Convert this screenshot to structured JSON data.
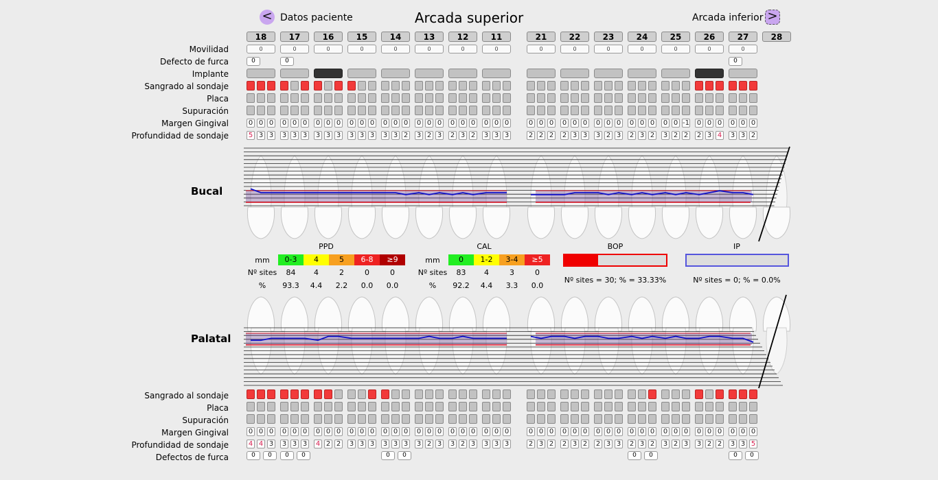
{
  "nav": {
    "left_label": "Datos paciente",
    "left_glyph": "<",
    "title": "Arcada superior",
    "right_label": "Arcada inferior",
    "right_glyph": ">"
  },
  "teeth": [
    "18",
    "17",
    "16",
    "15",
    "14",
    "13",
    "12",
    "11",
    "21",
    "22",
    "23",
    "24",
    "25",
    "26",
    "27",
    "28"
  ],
  "labels": {
    "movilidad": "Movilidad",
    "defecto_furca": "Defecto de furca",
    "implante": "Implante",
    "sangrado": "Sangrado al sondaje",
    "placa": "Placa",
    "supuracion": "Supuración",
    "margen": "Margen Gingival",
    "profundidad": "Profundidad de sondaje",
    "defectos_furca": "Defectos de furca",
    "bucal": "Bucal",
    "palatal": "Palatal"
  },
  "buccal": {
    "movilidad": [
      "0",
      "0",
      "0",
      "0",
      "0",
      "0",
      "0",
      "0",
      "0",
      "0",
      "0",
      "0",
      "0",
      "0",
      "0",
      null
    ],
    "furca": [
      "0",
      "0",
      null,
      null,
      null,
      null,
      null,
      null,
      null,
      null,
      null,
      null,
      null,
      null,
      "0",
      null
    ],
    "implante": [
      false,
      false,
      true,
      false,
      false,
      false,
      false,
      false,
      false,
      false,
      false,
      false,
      false,
      true,
      false,
      null
    ],
    "sangrado": [
      [
        1,
        1,
        1
      ],
      [
        1,
        0,
        1
      ],
      [
        1,
        0,
        1
      ],
      [
        1,
        0,
        0
      ],
      [
        0,
        0,
        0
      ],
      [
        0,
        0,
        0
      ],
      [
        0,
        0,
        0
      ],
      [
        0,
        0,
        0
      ],
      [
        0,
        0,
        0
      ],
      [
        0,
        0,
        0
      ],
      [
        0,
        0,
        0
      ],
      [
        0,
        0,
        0
      ],
      [
        0,
        0,
        0
      ],
      [
        1,
        1,
        1
      ],
      [
        1,
        1,
        1
      ],
      null
    ],
    "margen": [
      [
        "0",
        "0",
        "0"
      ],
      [
        "0",
        "0",
        "0"
      ],
      [
        "0",
        "0",
        "0"
      ],
      [
        "0",
        "0",
        "0"
      ],
      [
        "0",
        "0",
        "0"
      ],
      [
        "0",
        "0",
        "0"
      ],
      [
        "0",
        "0",
        "0"
      ],
      [
        "0",
        "0",
        "0"
      ],
      [
        "0",
        "0",
        "0"
      ],
      [
        "0",
        "0",
        "0"
      ],
      [
        "0",
        "0",
        "0"
      ],
      [
        "0",
        "0",
        "0"
      ],
      [
        "0",
        "0",
        "-1"
      ],
      [
        "0",
        "0",
        "0"
      ],
      [
        "0",
        "0",
        "0"
      ],
      null
    ],
    "profundidad": [
      [
        "5",
        "3",
        "3"
      ],
      [
        "3",
        "3",
        "3"
      ],
      [
        "3",
        "3",
        "3"
      ],
      [
        "3",
        "3",
        "3"
      ],
      [
        "3",
        "3",
        "2"
      ],
      [
        "3",
        "2",
        "3"
      ],
      [
        "2",
        "3",
        "2"
      ],
      [
        "3",
        "3",
        "3"
      ],
      [
        "2",
        "2",
        "2"
      ],
      [
        "2",
        "3",
        "3"
      ],
      [
        "3",
        "2",
        "3"
      ],
      [
        "2",
        "3",
        "2"
      ],
      [
        "3",
        "2",
        "2"
      ],
      [
        "2",
        "3",
        "4"
      ],
      [
        "3",
        "3",
        "2"
      ],
      null
    ]
  },
  "palatal": {
    "sangrado": [
      [
        1,
        1,
        1
      ],
      [
        1,
        1,
        1
      ],
      [
        1,
        1,
        0
      ],
      [
        0,
        0,
        1
      ],
      [
        1,
        0,
        0
      ],
      [
        0,
        0,
        0
      ],
      [
        0,
        0,
        0
      ],
      [
        0,
        0,
        0
      ],
      [
        0,
        0,
        0
      ],
      [
        0,
        0,
        0
      ],
      [
        0,
        0,
        0
      ],
      [
        0,
        0,
        1
      ],
      [
        0,
        0,
        0
      ],
      [
        1,
        0,
        1
      ],
      [
        1,
        1,
        1
      ],
      null
    ],
    "margen": [
      [
        "0",
        "0",
        "0"
      ],
      [
        "0",
        "0",
        "0"
      ],
      [
        "0",
        "0",
        "0"
      ],
      [
        "0",
        "0",
        "0"
      ],
      [
        "0",
        "0",
        "0"
      ],
      [
        "0",
        "0",
        "0"
      ],
      [
        "0",
        "0",
        "0"
      ],
      [
        "0",
        "0",
        "0"
      ],
      [
        "0",
        "0",
        "0"
      ],
      [
        "0",
        "0",
        "0"
      ],
      [
        "0",
        "0",
        "0"
      ],
      [
        "0",
        "0",
        "0"
      ],
      [
        "0",
        "0",
        "0"
      ],
      [
        "0",
        "0",
        "0"
      ],
      [
        "0",
        "0",
        "0"
      ],
      null
    ],
    "profundidad": [
      [
        "4",
        "4",
        "3"
      ],
      [
        "3",
        "3",
        "3"
      ],
      [
        "4",
        "2",
        "2"
      ],
      [
        "3",
        "3",
        "3"
      ],
      [
        "3",
        "3",
        "3"
      ],
      [
        "3",
        "2",
        "3"
      ],
      [
        "3",
        "2",
        "3"
      ],
      [
        "3",
        "3",
        "3"
      ],
      [
        "2",
        "3",
        "2"
      ],
      [
        "2",
        "3",
        "2"
      ],
      [
        "2",
        "3",
        "3"
      ],
      [
        "2",
        "3",
        "2"
      ],
      [
        "3",
        "2",
        "3"
      ],
      [
        "3",
        "2",
        "2"
      ],
      [
        "3",
        "3",
        "5"
      ],
      null
    ],
    "furca": [
      [
        "0",
        "0"
      ],
      [
        "0",
        "0"
      ],
      null,
      null,
      [
        "0",
        "0"
      ],
      null,
      null,
      null,
      null,
      null,
      null,
      [
        "0",
        "0"
      ],
      null,
      null,
      [
        "0",
        "0"
      ],
      null
    ]
  },
  "ppd": {
    "title": "PPD",
    "mm_label": "mm",
    "sites_label": "Nº sites",
    "pct_label": "%",
    "ranges": [
      "0-3",
      "4",
      "5",
      "6-8",
      "≥9"
    ],
    "colors": [
      "#22ee22",
      "#ffff00",
      "#f7a020",
      "#ee2222",
      "#b00000"
    ],
    "sites": [
      "84",
      "4",
      "2",
      "0",
      "0"
    ],
    "pct": [
      "93.3",
      "4.4",
      "2.2",
      "0.0",
      "0.0"
    ]
  },
  "cal": {
    "title": "CAL",
    "mm_label": "mm",
    "sites_label": "Nº sites",
    "pct_label": "%",
    "ranges": [
      "0",
      "1-2",
      "3-4",
      "≥5"
    ],
    "colors": [
      "#22ee22",
      "#ffff00",
      "#f7a020",
      "#ee2222"
    ],
    "sites": [
      "83",
      "4",
      "3",
      "0"
    ],
    "pct": [
      "92.2",
      "4.4",
      "3.3",
      "0.0"
    ]
  },
  "bop": {
    "title": "BOP",
    "text": "Nº sites = 30; % = 33.33%",
    "fraction": 0.3333,
    "color": "#f00000"
  },
  "ip": {
    "title": "IP",
    "text": "Nº sites = 0; % = 0.0%",
    "fraction": 0.0,
    "color": "#3333dd"
  }
}
